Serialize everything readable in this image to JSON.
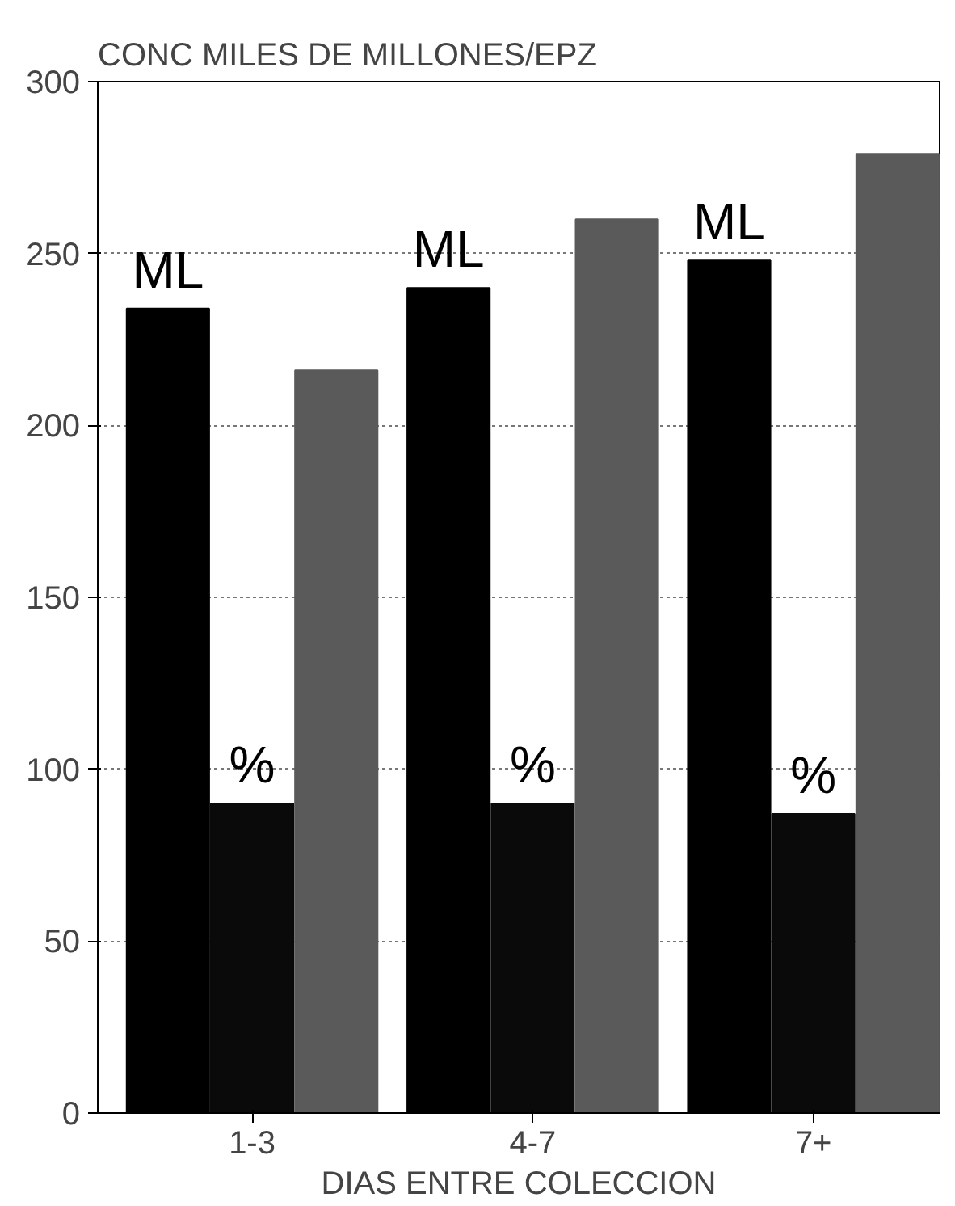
{
  "chart_data": {
    "type": "bar",
    "ylabel": "CONC MILES DE MILLONES/EPZ",
    "xlabel": "DIAS ENTRE COLECCION",
    "categories": [
      "1-3",
      "4-7",
      "7+"
    ],
    "series": [
      {
        "name": "ML",
        "color": "#000000",
        "values": [
          234,
          240,
          248
        ]
      },
      {
        "name": "%",
        "color": "#0a0a0a",
        "values": [
          90,
          90,
          87
        ]
      },
      {
        "color": "#5a5a5a",
        "values": [
          216,
          260,
          279
        ]
      }
    ],
    "ylim": [
      0,
      300
    ],
    "yticks": [
      0,
      50,
      100,
      150,
      200,
      250,
      300
    ],
    "grid": "y"
  }
}
